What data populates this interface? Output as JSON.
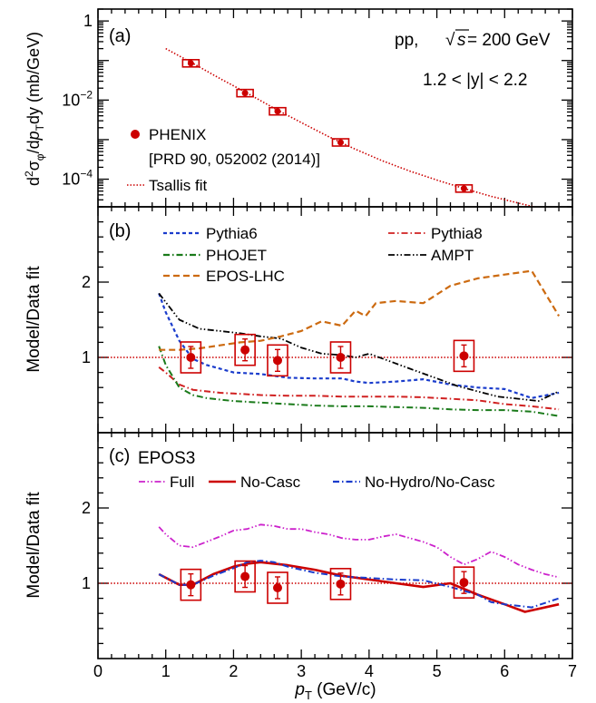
{
  "figure": {
    "x_axis_label_main": "p",
    "x_axis_label_sub": "T",
    "x_axis_label_unit": " (GeV/c)",
    "x_ticks": [
      "0",
      "1",
      "2",
      "3",
      "4",
      "5",
      "6",
      "7"
    ]
  },
  "chart_data": [
    {
      "type": "scatter",
      "panel_label": "(a)",
      "ylabel": "d²σ_φ/dp_Tdy (mb/GeV)",
      "y_scale": "log",
      "xlim": [
        0,
        7
      ],
      "ylim": [
        2e-05,
        2
      ],
      "y_ticks": [
        {
          "value": 1,
          "base": "1",
          "exp": ""
        },
        {
          "value": 0.01,
          "base": "10",
          "exp": "−2"
        },
        {
          "value": 0.0001,
          "base": "10",
          "exp": "−4"
        }
      ],
      "annotations": {
        "system": "pp,",
        "energy_prefix": "√",
        "energy_var": "s",
        "energy_value": " = 200 GeV",
        "rapidity": "1.2 < |y| < 2.2"
      },
      "legend": {
        "data_label": "PHENIX",
        "reference": "[PRD 90, 052002 (2014)]",
        "fit_label": "Tsallis fit"
      },
      "series": [
        {
          "name": "PHENIX",
          "style": "points",
          "color": "#cc0000",
          "x": [
            1.37,
            2.17,
            2.65,
            3.58,
            5.4
          ],
          "y": [
            0.085,
            0.015,
            0.0052,
            0.00085,
            5.8e-05
          ]
        },
        {
          "name": "Tsallis fit",
          "style": "dotted",
          "color": "#cc0000",
          "x": [
            1.0,
            1.4,
            1.8,
            2.2,
            2.6,
            3.0,
            3.4,
            3.8,
            4.2,
            4.6,
            5.0,
            5.4,
            5.8,
            6.2,
            6.6,
            6.8
          ],
          "y": [
            0.2,
            0.085,
            0.035,
            0.015,
            0.0062,
            0.0027,
            0.0012,
            0.00057,
            0.00029,
            0.00016,
            9.5e-05,
            5.8e-05,
            3.7e-05,
            2.5e-05,
            1.7e-05,
            1.4e-05
          ]
        }
      ]
    },
    {
      "type": "line",
      "panel_label": "(b)",
      "ylabel": "Model/Data fit",
      "xlim": [
        0,
        7
      ],
      "ylim": [
        0,
        3
      ],
      "y_ticks": [
        1,
        2
      ],
      "series": [
        {
          "name": "Pythia6",
          "style": "dash-short",
          "color": "#1a3ccc",
          "x": [
            0.9,
            1.0,
            1.2,
            1.4,
            1.6,
            1.8,
            2.0,
            2.4,
            2.8,
            3.2,
            3.6,
            3.8,
            4.0,
            4.4,
            4.8,
            5.2,
            5.6,
            6.0,
            6.4,
            6.8
          ],
          "y": [
            1.85,
            1.6,
            1.22,
            0.98,
            0.9,
            0.85,
            0.8,
            0.78,
            0.73,
            0.72,
            0.72,
            0.68,
            0.66,
            0.68,
            0.71,
            0.64,
            0.6,
            0.58,
            0.46,
            0.53
          ]
        },
        {
          "name": "Pythia8",
          "style": "dash-dot",
          "color": "#d02020",
          "x": [
            0.9,
            1.0,
            1.2,
            1.4,
            1.6,
            1.8,
            2.0,
            2.4,
            2.8,
            3.2,
            3.6,
            4.0,
            4.4,
            4.8,
            5.2,
            5.6,
            6.0,
            6.4,
            6.8
          ],
          "y": [
            0.87,
            0.8,
            0.64,
            0.57,
            0.55,
            0.53,
            0.52,
            0.5,
            0.49,
            0.49,
            0.48,
            0.48,
            0.48,
            0.47,
            0.45,
            0.43,
            0.38,
            0.35,
            0.31
          ]
        },
        {
          "name": "PHOJET",
          "style": "dash-dot",
          "color": "#1a7a1a",
          "x": [
            0.9,
            1.0,
            1.2,
            1.4,
            1.6,
            1.8,
            2.0,
            2.4,
            2.8,
            3.2,
            3.6,
            4.0,
            4.4,
            4.8,
            5.2,
            5.6,
            6.0,
            6.4,
            6.8
          ],
          "y": [
            1.15,
            0.9,
            0.6,
            0.5,
            0.46,
            0.44,
            0.42,
            0.4,
            0.38,
            0.36,
            0.35,
            0.35,
            0.34,
            0.33,
            0.31,
            0.3,
            0.3,
            0.28,
            0.22
          ]
        },
        {
          "name": "AMPT",
          "style": "dash-dot-dot",
          "color": "#000000",
          "x": [
            0.9,
            1.2,
            1.5,
            1.8,
            2.1,
            2.4,
            2.7,
            3.0,
            3.3,
            3.6,
            3.8,
            4.0,
            4.3,
            4.6,
            5.0,
            5.3,
            5.6,
            5.9,
            6.2,
            6.5,
            6.8
          ],
          "y": [
            1.85,
            1.5,
            1.38,
            1.35,
            1.32,
            1.28,
            1.25,
            1.13,
            1.05,
            1.03,
            1.0,
            1.05,
            0.95,
            0.85,
            0.72,
            0.62,
            0.55,
            0.48,
            0.45,
            0.42,
            0.55
          ]
        },
        {
          "name": "EPOS-LHC",
          "style": "dash-long",
          "color": "#cc6a10",
          "x": [
            0.9,
            1.2,
            1.5,
            1.8,
            2.1,
            2.4,
            2.7,
            3.0,
            3.3,
            3.6,
            3.8,
            3.95,
            4.1,
            4.4,
            4.8,
            5.2,
            5.6,
            6.0,
            6.4,
            6.8
          ],
          "y": [
            1.1,
            1.1,
            1.12,
            1.16,
            1.2,
            1.22,
            1.28,
            1.35,
            1.48,
            1.42,
            1.62,
            1.55,
            1.72,
            1.75,
            1.72,
            1.95,
            2.05,
            2.1,
            2.15,
            1.55
          ]
        },
        {
          "name": "",
          "style": "points",
          "color": "#cc0000",
          "x": [
            1.37,
            2.17,
            2.65,
            3.58,
            5.4
          ],
          "y": [
            1.0,
            1.1,
            0.96,
            1.0,
            1.02
          ]
        }
      ]
    },
    {
      "type": "line",
      "panel_label": "(c)",
      "title": "EPOS3",
      "ylabel": "Model/Data fit",
      "xlim": [
        0,
        7
      ],
      "ylim": [
        0,
        3
      ],
      "y_ticks": [
        1,
        2
      ],
      "series": [
        {
          "name": "Full",
          "style": "dash-dot-dot",
          "color": "#cc22cc",
          "x": [
            0.9,
            1.0,
            1.2,
            1.4,
            1.6,
            1.8,
            2.0,
            2.2,
            2.4,
            2.6,
            2.8,
            3.0,
            3.2,
            3.4,
            3.6,
            3.8,
            4.0,
            4.2,
            4.4,
            4.6,
            4.8,
            5.0,
            5.2,
            5.4,
            5.6,
            5.8,
            6.0,
            6.2,
            6.4,
            6.6,
            6.8
          ],
          "y": [
            1.75,
            1.65,
            1.5,
            1.48,
            1.55,
            1.62,
            1.7,
            1.72,
            1.78,
            1.76,
            1.72,
            1.72,
            1.68,
            1.65,
            1.6,
            1.58,
            1.58,
            1.62,
            1.65,
            1.6,
            1.55,
            1.48,
            1.35,
            1.25,
            1.32,
            1.42,
            1.35,
            1.25,
            1.18,
            1.12,
            1.08
          ]
        },
        {
          "name": "No-Casc",
          "style": "solid",
          "color": "#cc0000",
          "x": [
            0.9,
            1.2,
            1.4,
            1.7,
            2.0,
            2.2,
            2.4,
            2.6,
            2.8,
            3.2,
            3.6,
            4.0,
            4.4,
            4.8,
            5.2,
            5.6,
            6.0,
            6.3,
            6.8
          ],
          "y": [
            1.12,
            0.98,
            0.98,
            1.12,
            1.22,
            1.26,
            1.28,
            1.26,
            1.24,
            1.18,
            1.1,
            1.05,
            1.0,
            0.95,
            1.0,
            0.85,
            0.72,
            0.62,
            0.72
          ]
        },
        {
          "name": "No-Hydro/No-Casc",
          "style": "dash-dot",
          "color": "#1a3ccc",
          "x": [
            0.9,
            1.2,
            1.4,
            1.7,
            2.0,
            2.2,
            2.4,
            2.6,
            2.8,
            3.2,
            3.6,
            4.0,
            4.4,
            4.8,
            5.2,
            5.6,
            5.8,
            6.0,
            6.4,
            6.8
          ],
          "y": [
            1.12,
            0.98,
            0.98,
            1.1,
            1.2,
            1.28,
            1.3,
            1.28,
            1.22,
            1.14,
            1.09,
            1.07,
            1.05,
            1.04,
            0.95,
            0.85,
            0.75,
            0.72,
            0.68,
            0.8
          ]
        },
        {
          "name": "",
          "style": "points",
          "color": "#cc0000",
          "x": [
            1.37,
            2.17,
            2.65,
            3.58,
            5.4
          ],
          "y": [
            0.98,
            1.09,
            0.94,
            0.99,
            1.01
          ]
        }
      ]
    }
  ]
}
